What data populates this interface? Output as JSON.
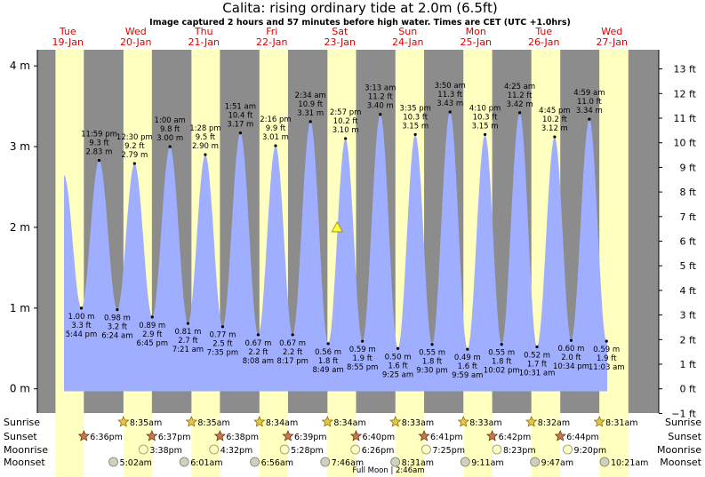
{
  "chart_data": {
    "type": "area",
    "title": "Calita: rising  ordinary tide at 2.0m (6.5ft)",
    "subtitle": "Image captured 2 hours and 57 minutes before high water. Times are CET (UTC +1.0hrs)",
    "y_left_ticks": [
      "0 m",
      "1 m",
      "2 m",
      "3 m",
      "4 m"
    ],
    "y_right_ticks": [
      "−1 ft",
      "0 ft",
      "1 ft",
      "2 ft",
      "3 ft",
      "4 ft",
      "5 ft",
      "6 ft",
      "7 ft",
      "8 ft",
      "9 ft",
      "10 ft",
      "11 ft",
      "12 ft",
      "13 ft"
    ],
    "ylim": [
      -0.3,
      4.2
    ],
    "days": [
      {
        "name": "Tue",
        "date": "19-Jan"
      },
      {
        "name": "Wed",
        "date": "20-Jan"
      },
      {
        "name": "Thu",
        "date": "21-Jan"
      },
      {
        "name": "Fri",
        "date": "22-Jan"
      },
      {
        "name": "Sat",
        "date": "23-Jan"
      },
      {
        "name": "Sun",
        "date": "24-Jan"
      },
      {
        "name": "Mon",
        "date": "25-Jan"
      },
      {
        "name": "Tue",
        "date": "26-Jan"
      },
      {
        "name": "Wed",
        "date": "27-Jan"
      }
    ],
    "tides": [
      {
        "type": "low",
        "day": 0,
        "hour": 17.73,
        "m": 1.0,
        "m_label": "1.00 m",
        "ft_label": "3.3 ft",
        "time": "5:44 pm"
      },
      {
        "type": "high",
        "day": 1,
        "hour": 0.0,
        "m": 2.83,
        "m_label": "2.83 m",
        "ft_label": "9.3 ft",
        "time": "11:59 pm"
      },
      {
        "type": "low",
        "day": 1,
        "hour": 6.4,
        "m": 0.98,
        "m_label": "0.98 m",
        "ft_label": "3.2 ft",
        "time": "6:24 am"
      },
      {
        "type": "high",
        "day": 1,
        "hour": 12.5,
        "m": 2.79,
        "m_label": "2.79 m",
        "ft_label": "9.2 ft",
        "time": "12:30 pm"
      },
      {
        "type": "low",
        "day": 1,
        "hour": 18.75,
        "m": 0.89,
        "m_label": "0.89 m",
        "ft_label": "2.9 ft",
        "time": "6:45 pm"
      },
      {
        "type": "high",
        "day": 2,
        "hour": 1.0,
        "m": 3.0,
        "m_label": "3.00 m",
        "ft_label": "9.8 ft",
        "time": "1:00 am"
      },
      {
        "type": "low",
        "day": 2,
        "hour": 7.35,
        "m": 0.81,
        "m_label": "0.81 m",
        "ft_label": "2.7 ft",
        "time": "7:21 am"
      },
      {
        "type": "high",
        "day": 2,
        "hour": 13.47,
        "m": 2.9,
        "m_label": "2.90 m",
        "ft_label": "9.5 ft",
        "time": "1:28 pm"
      },
      {
        "type": "low",
        "day": 2,
        "hour": 19.58,
        "m": 0.77,
        "m_label": "0.77 m",
        "ft_label": "2.5 ft",
        "time": "7:35 pm"
      },
      {
        "type": "high",
        "day": 3,
        "hour": 1.85,
        "m": 3.17,
        "m_label": "3.17 m",
        "ft_label": "10.4 ft",
        "time": "1:51 am"
      },
      {
        "type": "low",
        "day": 3,
        "hour": 8.13,
        "m": 0.67,
        "m_label": "0.67 m",
        "ft_label": "2.2 ft",
        "time": "8:08 am"
      },
      {
        "type": "high",
        "day": 3,
        "hour": 14.27,
        "m": 3.01,
        "m_label": "3.01 m",
        "ft_label": "9.9 ft",
        "time": "2:16 pm"
      },
      {
        "type": "low",
        "day": 3,
        "hour": 20.28,
        "m": 0.67,
        "m_label": "0.67 m",
        "ft_label": "2.2 ft",
        "time": "8:17 pm"
      },
      {
        "type": "high",
        "day": 4,
        "hour": 2.57,
        "m": 3.31,
        "m_label": "3.31 m",
        "ft_label": "10.9 ft",
        "time": "2:34 am"
      },
      {
        "type": "low",
        "day": 4,
        "hour": 8.82,
        "m": 0.56,
        "m_label": "0.56 m",
        "ft_label": "1.8 ft",
        "time": "8:49 am"
      },
      {
        "type": "high",
        "day": 4,
        "hour": 14.95,
        "m": 3.1,
        "m_label": "3.10 m",
        "ft_label": "10.2 ft",
        "time": "2:57 pm"
      },
      {
        "type": "low",
        "day": 4,
        "hour": 20.92,
        "m": 0.59,
        "m_label": "0.59 m",
        "ft_label": "1.9 ft",
        "time": "8:55 pm"
      },
      {
        "type": "high",
        "day": 5,
        "hour": 3.22,
        "m": 3.4,
        "m_label": "3.40 m",
        "ft_label": "11.2 ft",
        "time": "3:13 am"
      },
      {
        "type": "low",
        "day": 5,
        "hour": 9.42,
        "m": 0.5,
        "m_label": "0.50 m",
        "ft_label": "1.6 ft",
        "time": "9:25 am"
      },
      {
        "type": "high",
        "day": 5,
        "hour": 15.58,
        "m": 3.15,
        "m_label": "3.15 m",
        "ft_label": "10.3 ft",
        "time": "3:35 pm"
      },
      {
        "type": "low",
        "day": 5,
        "hour": 21.5,
        "m": 0.55,
        "m_label": "0.55 m",
        "ft_label": "1.8 ft",
        "time": "9:30 pm"
      },
      {
        "type": "high",
        "day": 6,
        "hour": 3.83,
        "m": 3.43,
        "m_label": "3.43 m",
        "ft_label": "11.3 ft",
        "time": "3:50 am"
      },
      {
        "type": "low",
        "day": 6,
        "hour": 9.98,
        "m": 0.49,
        "m_label": "0.49 m",
        "ft_label": "1.6 ft",
        "time": "9:59 am"
      },
      {
        "type": "high",
        "day": 6,
        "hour": 16.17,
        "m": 3.15,
        "m_label": "3.15 m",
        "ft_label": "10.3 ft",
        "time": "4:10 pm"
      },
      {
        "type": "low",
        "day": 6,
        "hour": 22.03,
        "m": 0.55,
        "m_label": "0.55 m",
        "ft_label": "1.8 ft",
        "time": "10:02 pm"
      },
      {
        "type": "high",
        "day": 7,
        "hour": 4.42,
        "m": 3.42,
        "m_label": "3.42 m",
        "ft_label": "11.2 ft",
        "time": "4:25 am"
      },
      {
        "type": "low",
        "day": 7,
        "hour": 10.52,
        "m": 0.52,
        "m_label": "0.52 m",
        "ft_label": "1.7 ft",
        "time": "10:31 am"
      },
      {
        "type": "high",
        "day": 7,
        "hour": 16.75,
        "m": 3.12,
        "m_label": "3.12 m",
        "ft_label": "10.2 ft",
        "time": "4:45 pm"
      },
      {
        "type": "low",
        "day": 7,
        "hour": 22.57,
        "m": 0.6,
        "m_label": "0.60 m",
        "ft_label": "2.0 ft",
        "time": "10:34 pm"
      },
      {
        "type": "high",
        "day": 8,
        "hour": 4.98,
        "m": 3.34,
        "m_label": "3.34 m",
        "ft_label": "11.0 ft",
        "time": "4:59 am"
      },
      {
        "type": "low",
        "day": 8,
        "hour": 11.05,
        "m": 0.59,
        "m_label": "0.59 m",
        "ft_label": "1.9 ft",
        "time": "11:03 am"
      }
    ],
    "curve_start": {
      "day": 0,
      "hour": 11.6,
      "m": 2.65
    },
    "curve_end": {
      "day": 8,
      "hour": 11.3,
      "m": 0.6
    },
    "current_marker": {
      "day": 4,
      "hour": 12.0,
      "m": 2.0
    },
    "row_labels": [
      "Sunrise",
      "Sunset",
      "Moonrise",
      "Moonset"
    ],
    "sunrise": [
      {
        "day": 1,
        "hour": 8.58,
        "time": "8:35am"
      },
      {
        "day": 2,
        "hour": 8.58,
        "time": "8:35am"
      },
      {
        "day": 3,
        "hour": 8.57,
        "time": "8:34am"
      },
      {
        "day": 4,
        "hour": 8.57,
        "time": "8:34am"
      },
      {
        "day": 5,
        "hour": 8.55,
        "time": "8:33am"
      },
      {
        "day": 6,
        "hour": 8.55,
        "time": "8:33am"
      },
      {
        "day": 7,
        "hour": 8.53,
        "time": "8:32am"
      },
      {
        "day": 8,
        "hour": 8.52,
        "time": "8:31am"
      }
    ],
    "sunset": [
      {
        "day": 0,
        "hour": 18.6,
        "time": "6:36pm"
      },
      {
        "day": 1,
        "hour": 18.62,
        "time": "6:37pm"
      },
      {
        "day": 2,
        "hour": 18.63,
        "time": "6:38pm"
      },
      {
        "day": 3,
        "hour": 18.65,
        "time": "6:39pm"
      },
      {
        "day": 4,
        "hour": 18.67,
        "time": "6:40pm"
      },
      {
        "day": 5,
        "hour": 18.68,
        "time": "6:41pm"
      },
      {
        "day": 6,
        "hour": 18.7,
        "time": "6:42pm"
      },
      {
        "day": 7,
        "hour": 18.73,
        "time": "6:44pm"
      }
    ],
    "sun_bands": [
      {
        "day": 0,
        "rise": 8.6,
        "set": 18.6
      },
      {
        "day": 1,
        "rise": 8.58,
        "set": 18.62
      },
      {
        "day": 2,
        "rise": 8.58,
        "set": 18.63
      },
      {
        "day": 3,
        "rise": 8.57,
        "set": 18.65
      },
      {
        "day": 4,
        "rise": 8.57,
        "set": 18.67
      },
      {
        "day": 5,
        "rise": 8.55,
        "set": 18.68
      },
      {
        "day": 6,
        "rise": 8.55,
        "set": 18.7
      },
      {
        "day": 7,
        "rise": 8.53,
        "set": 18.73
      },
      {
        "day": 8,
        "rise": 8.52,
        "set": 18.75
      }
    ],
    "moonrise": [
      {
        "day": 1,
        "hour": 15.63,
        "time": "3:38pm"
      },
      {
        "day": 2,
        "hour": 16.53,
        "time": "4:32pm"
      },
      {
        "day": 3,
        "hour": 17.47,
        "time": "5:28pm"
      },
      {
        "day": 4,
        "hour": 18.43,
        "time": "6:26pm"
      },
      {
        "day": 5,
        "hour": 19.42,
        "time": "7:25pm"
      },
      {
        "day": 6,
        "hour": 20.38,
        "time": "8:23pm"
      },
      {
        "day": 7,
        "hour": 21.33,
        "time": "9:20pm"
      }
    ],
    "moonset": [
      {
        "day": 1,
        "hour": 5.03,
        "time": "5:02am"
      },
      {
        "day": 2,
        "hour": 6.02,
        "time": "6:01am"
      },
      {
        "day": 3,
        "hour": 6.93,
        "time": "6:56am"
      },
      {
        "day": 4,
        "hour": 7.77,
        "time": "7:46am"
      },
      {
        "day": 5,
        "hour": 8.52,
        "time": "8:31am"
      },
      {
        "day": 6,
        "hour": 9.18,
        "time": "9:11am"
      },
      {
        "day": 7,
        "hour": 9.78,
        "time": "9:47am"
      },
      {
        "day": 8,
        "hour": 10.35,
        "time": "10:21am"
      }
    ],
    "full_moon_label": "Full Moon | 2:46am",
    "colors": {
      "day": "#ffffc0",
      "night": "#8c8c8c",
      "water": "#a0aeff",
      "day_label": "#e00000",
      "star": "#e8c840",
      "sunset_star": "#c87850",
      "moonrise": "#ffffc0",
      "moonset": "#d0d0c0"
    }
  }
}
